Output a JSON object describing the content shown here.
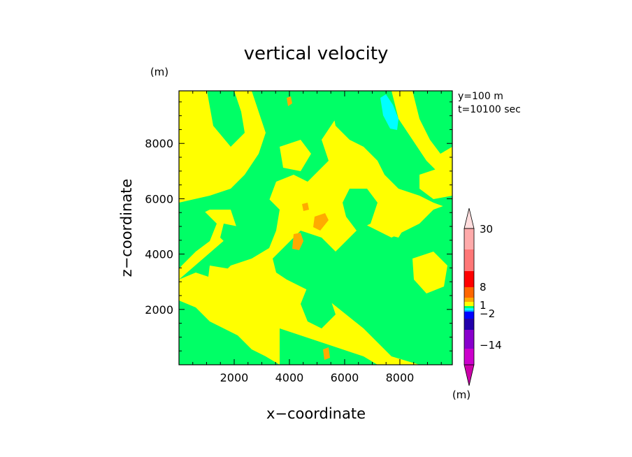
{
  "chart_data": {
    "type": "heatmap",
    "title": "vertical velocity",
    "xlabel": "x−coordinate",
    "ylabel": "z−coordinate",
    "x_unit": "(m)",
    "y_unit": "(m)",
    "xlim": [
      0,
      9900
    ],
    "ylim": [
      0,
      9900
    ],
    "x_ticks": [
      2000,
      4000,
      6000,
      8000
    ],
    "y_ticks": [
      2000,
      4000,
      6000,
      8000
    ],
    "x_tick_labels": [
      "2000",
      "4000",
      "6000",
      "8000"
    ],
    "y_tick_labels": [
      "2000",
      "4000",
      "6000",
      "8000"
    ],
    "annotations": [
      "y=100 m",
      "t=10100 sec"
    ],
    "colorbar": {
      "unit": "(m)",
      "labels": [
        "30",
        "8",
        "1",
        "−2",
        "−14"
      ],
      "levels": [
        {
          "color": "#cc00aa"
        },
        {
          "color": "#cc00cc"
        },
        {
          "color": "#8800cc"
        },
        {
          "color": "#2200aa"
        },
        {
          "color": "#0000ff"
        },
        {
          "color": "#00aaff"
        },
        {
          "color": "#00ffff"
        },
        {
          "color": "#00ff66"
        },
        {
          "color": "#ffff00"
        },
        {
          "color": "#ffaa00"
        },
        {
          "color": "#ff6600"
        },
        {
          "color": "#ff0000"
        },
        {
          "color": "#ff7777"
        },
        {
          "color": "#ffaaaa"
        },
        {
          "color": "#ffdddd"
        }
      ]
    },
    "field_colors": {
      "positive_weak": "#ffff00",
      "near_zero": "#00ff66",
      "positive_moderate": "#ffaa00",
      "negative_moderate": "#00ffff"
    }
  }
}
